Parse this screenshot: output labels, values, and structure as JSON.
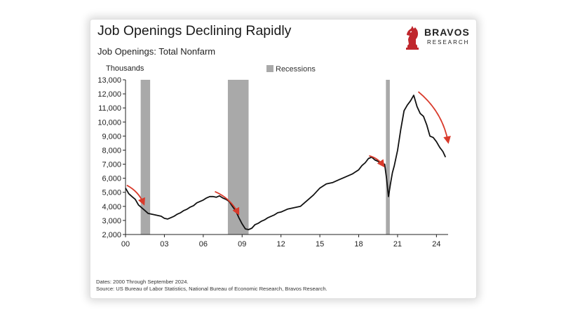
{
  "header": {
    "title": "Job Openings Declining Rapidly",
    "subtitle": "Job Openings: Total Nonfarm"
  },
  "logo": {
    "name": "BRAVOS",
    "tagline": "RESEARCH",
    "icon": "knight-chess-piece-icon",
    "color": "#c0272d"
  },
  "footnotes": {
    "dates": "Dates: 2000 Through September 2024.",
    "source": "Source: US Bureau of Labor Statistics, National Bureau of Economic Research, Bravos Research."
  },
  "colors": {
    "line": "#111111",
    "recession": "#a9a9a9",
    "arrow": "#d93a2b",
    "axis": "#222222"
  },
  "chart_data": {
    "type": "line",
    "title": "Job Openings Declining Rapidly",
    "subtitle": "Job Openings: Total Nonfarm",
    "ylabel": "Thousands",
    "xlabel": "",
    "ylim": [
      2000,
      13000
    ],
    "xlim": [
      2000,
      2024.9
    ],
    "yticks": [
      2000,
      3000,
      4000,
      5000,
      6000,
      7000,
      8000,
      9000,
      10000,
      11000,
      12000,
      13000
    ],
    "ytick_labels": [
      "2,000",
      "3,000",
      "4,000",
      "5,000",
      "6,000",
      "7,000",
      "8,000",
      "9,000",
      "10,000",
      "11,000",
      "12,000",
      "13,000"
    ],
    "xticks": [
      2000,
      2003,
      2006,
      2009,
      2012,
      2015,
      2018,
      2021,
      2024
    ],
    "xtick_labels": [
      "00",
      "03",
      "06",
      "09",
      "12",
      "15",
      "18",
      "21",
      "24"
    ],
    "legend": {
      "label": "Recessions",
      "position": "top-center"
    },
    "grid": false,
    "recessions": [
      {
        "start": 2001.17,
        "end": 2001.9
      },
      {
        "start": 2007.9,
        "end": 2009.5
      },
      {
        "start": 2020.1,
        "end": 2020.4
      }
    ],
    "series": [
      {
        "name": "Job Openings: Total Nonfarm",
        "x": [
          2000.0,
          2000.25,
          2000.5,
          2000.75,
          2001.0,
          2001.25,
          2001.5,
          2001.75,
          2002.0,
          2002.25,
          2002.5,
          2002.75,
          2003.0,
          2003.25,
          2003.5,
          2003.75,
          2004.0,
          2004.25,
          2004.5,
          2004.75,
          2005.0,
          2005.25,
          2005.5,
          2005.75,
          2006.0,
          2006.25,
          2006.5,
          2006.75,
          2007.0,
          2007.25,
          2007.5,
          2007.75,
          2008.0,
          2008.25,
          2008.5,
          2008.75,
          2009.0,
          2009.25,
          2009.5,
          2009.75,
          2010.0,
          2010.25,
          2010.5,
          2010.75,
          2011.0,
          2011.25,
          2011.5,
          2011.75,
          2012.0,
          2012.5,
          2013.0,
          2013.5,
          2014.0,
          2014.5,
          2015.0,
          2015.5,
          2016.0,
          2016.5,
          2017.0,
          2017.5,
          2018.0,
          2018.25,
          2018.5,
          2018.75,
          2019.0,
          2019.25,
          2019.5,
          2019.75,
          2020.0,
          2020.15,
          2020.3,
          2020.45,
          2020.6,
          2020.75,
          2021.0,
          2021.25,
          2021.5,
          2021.75,
          2022.0,
          2022.25,
          2022.5,
          2022.75,
          2023.0,
          2023.25,
          2023.5,
          2023.75,
          2024.0,
          2024.25,
          2024.5,
          2024.7
        ],
        "values": [
          5300,
          4900,
          4700,
          4500,
          4100,
          3900,
          3700,
          3500,
          3450,
          3400,
          3350,
          3300,
          3150,
          3100,
          3200,
          3300,
          3450,
          3550,
          3700,
          3800,
          3950,
          4050,
          4250,
          4350,
          4450,
          4600,
          4700,
          4700,
          4650,
          4750,
          4600,
          4500,
          4350,
          4000,
          3700,
          3200,
          2750,
          2400,
          2350,
          2450,
          2700,
          2800,
          2950,
          3050,
          3200,
          3300,
          3400,
          3550,
          3600,
          3800,
          3900,
          4000,
          4400,
          4800,
          5300,
          5600,
          5700,
          5900,
          6100,
          6300,
          6600,
          6900,
          7100,
          7400,
          7500,
          7300,
          7200,
          7000,
          7000,
          6000,
          4700,
          5600,
          6400,
          6900,
          8000,
          9500,
          10800,
          11200,
          11500,
          11900,
          11100,
          10600,
          10400,
          9800,
          9000,
          8900,
          8600,
          8200,
          7900,
          7500
        ]
      }
    ],
    "annotations": [
      {
        "type": "arrow",
        "direction": "down",
        "from": [
          2000.1,
          5500
        ],
        "to": [
          2001.4,
          4200
        ]
      },
      {
        "type": "arrow",
        "direction": "down",
        "from": [
          2006.9,
          5050
        ],
        "to": [
          2008.7,
          3500
        ]
      },
      {
        "type": "arrow",
        "direction": "down",
        "from": [
          2018.8,
          7600
        ],
        "to": [
          2019.9,
          6900
        ]
      },
      {
        "type": "arrow",
        "direction": "down",
        "from": [
          2022.6,
          12150
        ],
        "to": [
          2024.9,
          8600
        ]
      }
    ]
  }
}
